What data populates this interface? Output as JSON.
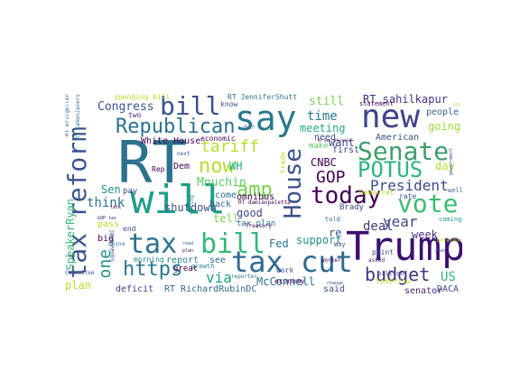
{
  "words": [
    {
      "text": "RT",
      "color": "#2c728e"
    },
    {
      "text": "Trump",
      "color": "#3b0f70"
    },
    {
      "text": "will",
      "color": "#1f9e89"
    },
    {
      "text": "say",
      "color": "#2a788e"
    },
    {
      "text": "new",
      "color": "#414487"
    },
    {
      "text": "tax cut",
      "color": "#30698e"
    },
    {
      "text": "tax",
      "color": "#2c728e"
    },
    {
      "text": "bill",
      "color": "#35b779"
    },
    {
      "text": "tax reform",
      "color": "#3b528b"
    },
    {
      "text": "bill",
      "color": "#3b528b"
    },
    {
      "text": "Senate",
      "color": "#3f9e6b"
    },
    {
      "text": "vote",
      "color": "#3fbc73"
    },
    {
      "text": "today",
      "color": "#440154"
    },
    {
      "text": "House",
      "color": "#3b528b"
    },
    {
      "text": "Republican",
      "color": "#2d708e"
    },
    {
      "text": "amp",
      "color": "#7ad151"
    },
    {
      "text": "now",
      "color": "#b5de2b"
    },
    {
      "text": "POTUS",
      "color": "#2fb47c"
    },
    {
      "text": "tariff",
      "color": "#b5de2b"
    },
    {
      "text": "budget",
      "color": "#46337e"
    },
    {
      "text": "https",
      "color": "#2a788e"
    },
    {
      "text": "President",
      "color": "#3e4a89"
    },
    {
      "text": "GOP",
      "color": "#440154"
    },
    {
      "text": "year",
      "color": "#404688"
    },
    {
      "text": "one",
      "color": "#21918c"
    },
    {
      "text": "time",
      "color": "#2a788e"
    },
    {
      "text": "Mnuchin",
      "color": "#5ec962"
    },
    {
      "text": "deal",
      "color": "#443983"
    },
    {
      "text": "think",
      "color": "#2c728e"
    },
    {
      "text": "still",
      "color": "#7ad151"
    },
    {
      "text": "Congress",
      "color": "#3b528b"
    },
    {
      "text": "McConnell",
      "color": "#2c728e"
    },
    {
      "text": "RT sahilkapur",
      "color": "#46327e"
    },
    {
      "text": "meeting",
      "color": "#27ad81"
    },
    {
      "text": "want",
      "color": "#3e4c8a"
    },
    {
      "text": "CNBC",
      "color": "#440154"
    },
    {
      "text": "WH",
      "color": "#22a884"
    },
    {
      "text": "shutdown",
      "color": "#3b528b"
    },
    {
      "text": "Fed",
      "color": "#2c728e"
    },
    {
      "text": "support",
      "color": "#21918c"
    },
    {
      "text": "tell",
      "color": "#7ad151"
    },
    {
      "text": "good",
      "color": "#404688"
    },
    {
      "text": "week",
      "color": "#46337e"
    },
    {
      "text": "US",
      "color": "#35b779"
    },
    {
      "text": "day",
      "color": "#b5de2b"
    },
    {
      "text": "going",
      "color": "#9fda3a"
    },
    {
      "text": "people",
      "color": "#32648e"
    },
    {
      "text": "SpeakerRyan",
      "color": "#35b779"
    },
    {
      "text": "via",
      "color": "#1f9e89"
    },
    {
      "text": "plan",
      "color": "#b5de2b"
    },
    {
      "text": "DACA",
      "color": "#404688"
    },
    {
      "text": "said",
      "color": "#3e4a89"
    },
    {
      "text": "RT RichardRubinDC",
      "color": "#31688e"
    },
    {
      "text": "deficit",
      "color": "#433e85"
    },
    {
      "text": "White House",
      "color": "#440154"
    },
    {
      "text": "economic",
      "color": "#46085c"
    },
    {
      "text": "RT JenniferShutt",
      "color": "#2c728e"
    },
    {
      "text": "need",
      "color": "#3b528b"
    },
    {
      "text": "make",
      "color": "#5ec962"
    },
    {
      "text": "first",
      "color": "#3f4889"
    },
    {
      "text": "re",
      "color": "#3b528b"
    },
    {
      "text": "report",
      "color": "#26828e"
    },
    {
      "text": "omnibus",
      "color": "#440154"
    },
    {
      "text": "tax plan",
      "color": "#2c728e"
    },
    {
      "text": "Sen",
      "color": "#21918c"
    },
    {
      "text": "Dem",
      "color": "#440154"
    },
    {
      "text": "pass",
      "color": "#b5de2b"
    },
    {
      "text": "big",
      "color": "#440154"
    },
    {
      "text": "American",
      "color": "#3b528b"
    },
    {
      "text": "back",
      "color": "#31688e"
    },
    {
      "text": "come",
      "color": "#2c728e"
    },
    {
      "text": "Brady",
      "color": "#3e4a89"
    },
    {
      "text": "Democrat",
      "color": "#b5de2b"
    },
    {
      "text": "rate",
      "color": "#3b528b"
    },
    {
      "text": "point",
      "color": "#404688"
    },
    {
      "text": "senator",
      "color": "#482475"
    },
    {
      "text": "tomorrow",
      "color": "#b5de2b"
    },
    {
      "text": "know",
      "color": "#3e4a89"
    },
    {
      "text": "pay",
      "color": "#3e4a89"
    },
    {
      "text": "see",
      "color": "#2c728e"
    },
    {
      "text": "end",
      "color": "#3b528b"
    },
    {
      "text": "morning",
      "color": "#26828e"
    },
    {
      "text": "economy",
      "color": "#46085c"
    },
    {
      "text": "great",
      "color": "#440154"
    },
    {
      "text": "work",
      "color": "#3b528b"
    },
    {
      "text": "spending bill",
      "color": "#b5de2b"
    },
    {
      "text": "two",
      "color": "#482475"
    },
    {
      "text": "Rep",
      "color": "#440154"
    },
    {
      "text": "next",
      "color": "#3b528b"
    },
    {
      "text": "per",
      "color": "#31688e"
    },
    {
      "text": "growth",
      "color": "#26828e"
    },
    {
      "text": "Treasury",
      "color": "#46085c"
    },
    {
      "text": "billion",
      "color": "#404688"
    },
    {
      "text": "told",
      "color": "#2c728e"
    },
    {
      "text": "Way",
      "color": "#3b528b"
    },
    {
      "text": "statement",
      "color": "#440154"
    },
    {
      "text": "well",
      "color": "#31688e"
    },
    {
      "text": "coming",
      "color": "#21918c"
    },
    {
      "text": "trade",
      "color": "#b5de2b"
    },
    {
      "text": "Committee",
      "color": "#3b528b"
    },
    {
      "text": "conference",
      "color": "#b5de2b"
    },
    {
      "text": "RT ericgeller",
      "color": "#31688e"
    },
    {
      "text": "RT damianpaletta",
      "color": "#440154"
    },
    {
      "text": "RT EamonJavers",
      "color": "#2c728e"
    },
    {
      "text": "SquawkCNBC",
      "color": "#3b528b"
    },
    {
      "text": "worker",
      "color": "#440154"
    },
    {
      "text": "include",
      "color": "#b5de2b"
    },
    {
      "text": "change",
      "color": "#3b528b"
    },
    {
      "text": "asked",
      "color": "#482475"
    },
    {
      "text": "reporter",
      "color": "#2c728e"
    },
    {
      "text": "China",
      "color": "#2c728e"
    },
    {
      "text": "talk",
      "color": "#440154"
    },
    {
      "text": "cost",
      "color": "#3b528b"
    },
    {
      "text": "voting",
      "color": "#21918c"
    },
    {
      "text": "GOP tax",
      "color": "#482475"
    },
    {
      "text": "year",
      "color": "#3b528b"
    },
    {
      "text": "read",
      "color": "#31688e"
    },
    {
      "text": "plan",
      "color": "#440154"
    },
    {
      "text": "government",
      "color": "#3b528b"
    },
    {
      "text": "RT EmilyPeralta",
      "color": "#440154"
    }
  ]
}
